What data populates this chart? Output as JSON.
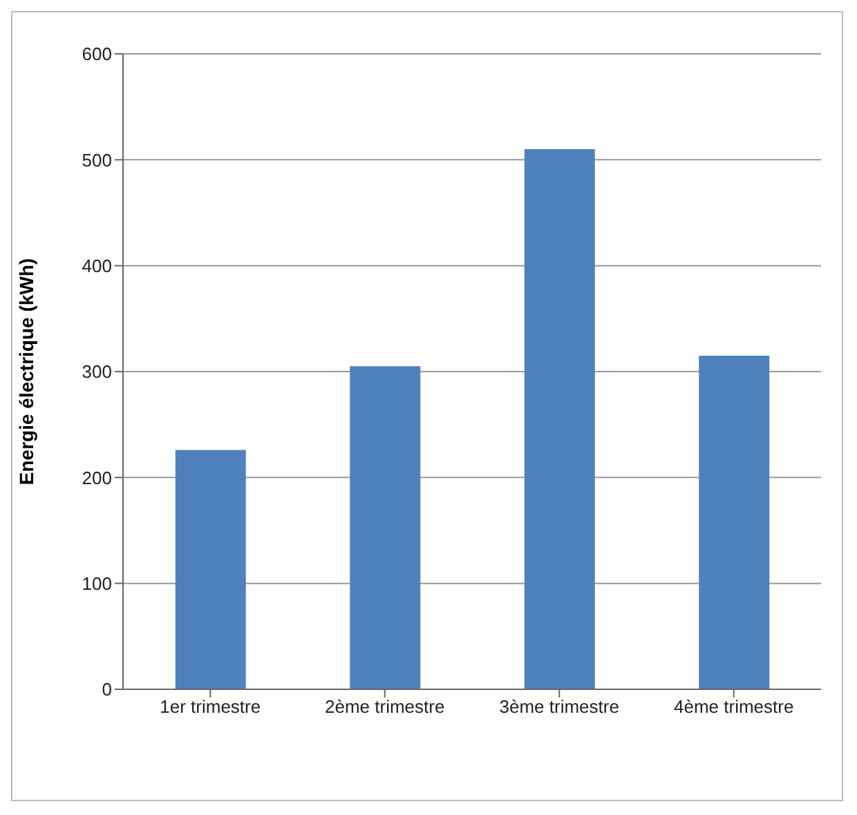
{
  "chart_data": {
    "type": "bar",
    "ylabel": "Energie électrique (kWh)",
    "categories": [
      "1er trimestre",
      "2ème trimestre",
      "3ème trimestre",
      "4ème trimestre"
    ],
    "values": [
      226,
      305,
      510,
      315
    ],
    "color": "#4f81bd",
    "ylim": [
      0,
      600
    ],
    "yticks": [
      0,
      100,
      200,
      300,
      400,
      500,
      600
    ],
    "grid": "y"
  }
}
